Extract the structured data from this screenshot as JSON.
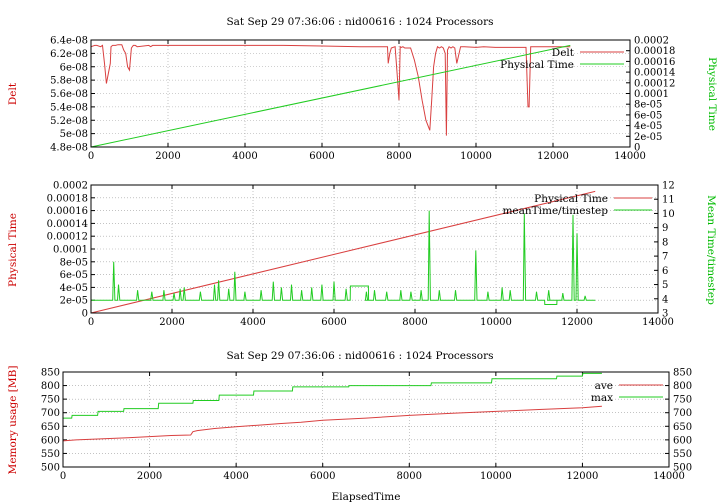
{
  "chart_data": [
    {
      "type": "line",
      "title": "Sat Sep 29 07:36:06 : nid00616 : 1024 Processors",
      "xlabel": "",
      "ylabel": "Delt",
      "y2label": "Physical Time",
      "xlim": [
        0,
        14000
      ],
      "ylim": [
        4.8e-08,
        6.4e-08
      ],
      "y2lim": [
        0,
        0.0002
      ],
      "grid": true,
      "legend_position": "top-right",
      "x_ticks": [
        "0",
        "2000",
        "4000",
        "6000",
        "8000",
        "10000",
        "12000",
        "14000"
      ],
      "y_ticks": [
        "4.8e-08",
        "5e-08",
        "5.2e-08",
        "5.4e-08",
        "5.6e-08",
        "5.8e-08",
        "6e-08",
        "6.2e-08",
        "6.4e-08"
      ],
      "y2_ticks": [
        "0",
        "2e-05",
        "4e-05",
        "6e-05",
        "8e-05",
        "0.0001",
        "0.00012",
        "0.00014",
        "0.00016",
        "0.00018",
        "0.0002"
      ],
      "series": [
        {
          "name": "Delt",
          "axis": "left",
          "color": "#d94040",
          "x": [
            0,
            100,
            150,
            250,
            300,
            350,
            400,
            500,
            520,
            560,
            600,
            640,
            700,
            800,
            850,
            900,
            950,
            1000,
            1050,
            1100,
            1150,
            1200,
            1500,
            1550,
            1600,
            3000,
            3500,
            4000,
            5000,
            6000,
            7000,
            7700,
            7720,
            7760,
            7800,
            7900,
            7950,
            8000,
            8030,
            8060,
            8100,
            8150,
            8200,
            8300,
            8400,
            8500,
            8600,
            8700,
            8800,
            8850,
            8900,
            8950,
            9000,
            9050,
            9100,
            9150,
            9200,
            9230,
            9260,
            9300,
            9350,
            9400,
            9450,
            9500,
            9600,
            9700,
            10000,
            10200,
            10500,
            11000,
            11300,
            11350,
            11380,
            11420,
            11500,
            12000,
            12450
          ],
          "y": [
            6.3e-08,
            6.32e-08,
            6.32e-08,
            6.3e-08,
            6.32e-08,
            6.05e-08,
            5.75e-08,
            6.05e-08,
            6.3e-08,
            6.32e-08,
            6.32e-08,
            6.32e-08,
            6.33e-08,
            6.33e-08,
            6.25e-08,
            6.2e-08,
            6e-08,
            5.95e-08,
            6.28e-08,
            6.32e-08,
            6.32e-08,
            6.3e-08,
            6.32e-08,
            6.3e-08,
            6.32e-08,
            6.32e-08,
            6.32e-08,
            6.32e-08,
            6.32e-08,
            6.31e-08,
            6.3e-08,
            6.3e-08,
            6.05e-08,
            6.2e-08,
            6.28e-08,
            6.3e-08,
            5.9e-08,
            5.5e-08,
            6.3e-08,
            6.29e-08,
            6.3e-08,
            6.28e-08,
            6.28e-08,
            6.28e-08,
            6.1e-08,
            5.85e-08,
            5.5e-08,
            5.2e-08,
            5.05e-08,
            5.5e-08,
            6e-08,
            6.2e-08,
            6.3e-08,
            6.28e-08,
            6.3e-08,
            6.28e-08,
            6.2e-08,
            4.97e-08,
            6.25e-08,
            6.3e-08,
            6.28e-08,
            6.3e-08,
            6.28e-08,
            6.05e-08,
            6.3e-08,
            6.3e-08,
            6.29e-08,
            6.3e-08,
            6.29e-08,
            6.29e-08,
            6.29e-08,
            5.4e-08,
            5.4e-08,
            6.3e-08,
            6.3e-08,
            6.3e-08,
            6.3e-08
          ]
        },
        {
          "name": "Physical Time",
          "axis": "right",
          "color": "#22cc22",
          "x": [
            0,
            12450
          ],
          "y": [
            0,
            0.00019
          ]
        }
      ]
    },
    {
      "type": "line",
      "title": "",
      "xlabel": "",
      "ylabel": "Physical Time",
      "y2label": "Mean Time/timestep",
      "xlim": [
        0,
        14000
      ],
      "ylim": [
        0,
        0.0002
      ],
      "y2lim": [
        3,
        12
      ],
      "grid": true,
      "legend_position": "top-right",
      "x_ticks": [
        "0",
        "2000",
        "4000",
        "6000",
        "8000",
        "10000",
        "12000",
        "14000"
      ],
      "y_ticks": [
        "0",
        "2e-05",
        "4e-05",
        "6e-05",
        "8e-05",
        "0.0001",
        "0.00012",
        "0.00014",
        "0.00016",
        "0.00018",
        "0.0002"
      ],
      "y2_ticks": [
        "3",
        "4",
        "5",
        "6",
        "7",
        "8",
        "9",
        "10",
        "11",
        "12"
      ],
      "series": [
        {
          "name": "Physical Time",
          "axis": "left",
          "color": "#d94040",
          "x": [
            0,
            12450
          ],
          "y": [
            0,
            0.00019
          ]
        },
        {
          "name": "meanTime/timestep",
          "axis": "right",
          "color": "#22cc22",
          "baseline": 3.9,
          "x_start": 0,
          "x_end": 12450,
          "spikes": [
            {
              "x": 560,
              "y": 6.6
            },
            {
              "x": 680,
              "y": 5.0
            },
            {
              "x": 1150,
              "y": 4.6
            },
            {
              "x": 1500,
              "y": 4.5
            },
            {
              "x": 1800,
              "y": 4.6
            },
            {
              "x": 2050,
              "y": 4.4
            },
            {
              "x": 2200,
              "y": 4.7
            },
            {
              "x": 2300,
              "y": 4.8
            },
            {
              "x": 2700,
              "y": 4.5
            },
            {
              "x": 3050,
              "y": 5.0
            },
            {
              "x": 3150,
              "y": 5.3
            },
            {
              "x": 3400,
              "y": 4.7
            },
            {
              "x": 3550,
              "y": 5.9
            },
            {
              "x": 3800,
              "y": 4.5
            },
            {
              "x": 4200,
              "y": 4.6
            },
            {
              "x": 4500,
              "y": 5.2
            },
            {
              "x": 4700,
              "y": 4.8
            },
            {
              "x": 4950,
              "y": 5.0
            },
            {
              "x": 5200,
              "y": 4.6
            },
            {
              "x": 5450,
              "y": 4.8
            },
            {
              "x": 5700,
              "y": 5.0
            },
            {
              "x": 6000,
              "y": 5.2
            },
            {
              "x": 6300,
              "y": 4.7
            },
            {
              "x": 6800,
              "y": 4.5
            },
            {
              "x": 7000,
              "y": 4.6
            },
            {
              "x": 7300,
              "y": 4.5
            },
            {
              "x": 7650,
              "y": 4.6
            },
            {
              "x": 7900,
              "y": 4.5
            },
            {
              "x": 8150,
              "y": 4.6
            },
            {
              "x": 8350,
              "y": 10.2
            },
            {
              "x": 8600,
              "y": 4.6
            },
            {
              "x": 9000,
              "y": 4.6
            },
            {
              "x": 9500,
              "y": 7.4
            },
            {
              "x": 9800,
              "y": 4.5
            },
            {
              "x": 10150,
              "y": 4.8
            },
            {
              "x": 10350,
              "y": 4.6
            },
            {
              "x": 10700,
              "y": 10.0
            },
            {
              "x": 11000,
              "y": 4.5
            },
            {
              "x": 11300,
              "y": 4.6
            },
            {
              "x": 11650,
              "y": 4.4
            },
            {
              "x": 11900,
              "y": 9.9
            },
            {
              "x": 12000,
              "y": 8.6
            },
            {
              "x": 12200,
              "y": 4.2
            }
          ],
          "plateaus": [
            {
              "x0": 6400,
              "x1": 6850,
              "y": 4.9
            },
            {
              "x0": 11200,
              "x1": 11500,
              "y": 3.6
            }
          ]
        }
      ]
    },
    {
      "type": "line",
      "title": "Sat Sep 29 07:36:06 : nid00616 : 1024 Processors",
      "xlabel": "ElapsedTime",
      "ylabel": "Memory usage [MB]",
      "y2label": "",
      "xlim": [
        0,
        14000
      ],
      "ylim": [
        500,
        850
      ],
      "y2lim": [
        500,
        850
      ],
      "grid": true,
      "legend_position": "top-right",
      "x_ticks": [
        "0",
        "2000",
        "4000",
        "6000",
        "8000",
        "10000",
        "12000",
        "14000"
      ],
      "y_ticks": [
        "500",
        "550",
        "600",
        "650",
        "700",
        "750",
        "800",
        "850"
      ],
      "y2_ticks": [
        "500",
        "550",
        "600",
        "650",
        "700",
        "750",
        "800",
        "850"
      ],
      "series": [
        {
          "name": "ave",
          "axis": "left",
          "color": "#d94040",
          "x": [
            0,
            300,
            800,
            1500,
            2000,
            2500,
            2950,
            3000,
            3100,
            3500,
            4000,
            4500,
            5000,
            5500,
            6000,
            7000,
            8000,
            9000,
            10000,
            11000,
            12000,
            12450
          ],
          "y": [
            596,
            600,
            603,
            608,
            612,
            616,
            618,
            630,
            634,
            642,
            648,
            654,
            660,
            665,
            672,
            680,
            690,
            698,
            705,
            712,
            718,
            724
          ]
        },
        {
          "name": "max",
          "axis": "left",
          "color": "#22cc22",
          "x": [
            0,
            200,
            210,
            800,
            810,
            1400,
            1410,
            2200,
            2210,
            3000,
            3010,
            3600,
            3610,
            4400,
            4410,
            5300,
            5310,
            6600,
            6610,
            8500,
            8510,
            9900,
            9910,
            11400,
            11410,
            12000,
            12010,
            12450
          ],
          "y": [
            680,
            680,
            690,
            690,
            705,
            705,
            715,
            715,
            735,
            735,
            745,
            745,
            765,
            765,
            780,
            780,
            795,
            795,
            800,
            800,
            810,
            810,
            825,
            825,
            835,
            835,
            845,
            845
          ]
        }
      ]
    }
  ]
}
